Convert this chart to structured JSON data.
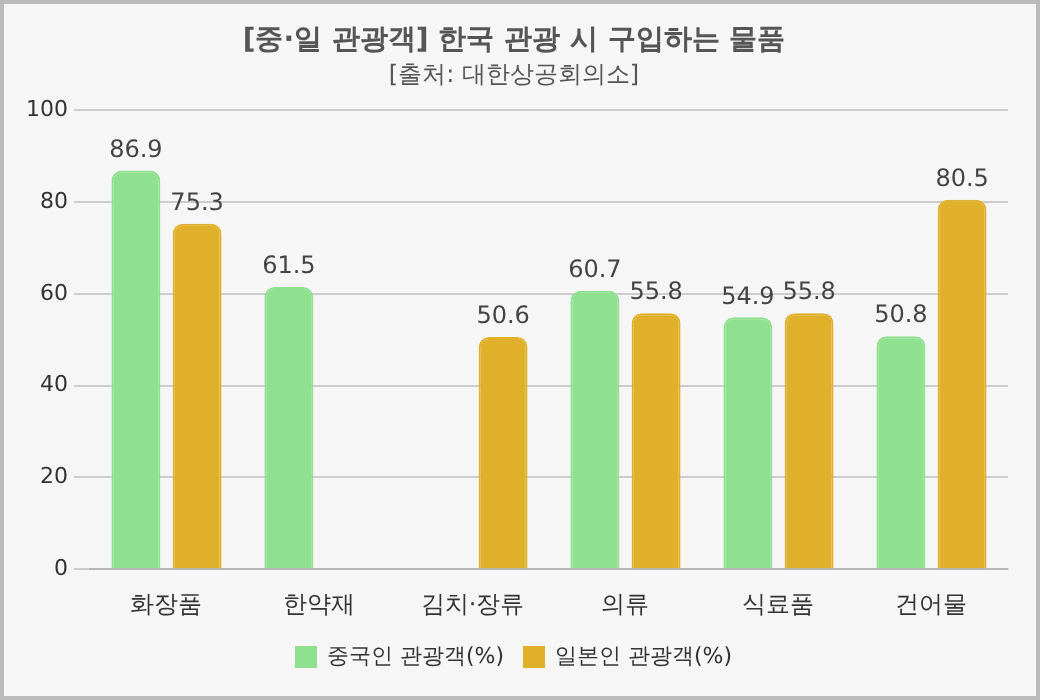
{
  "chart_data": {
    "type": "bar",
    "title": "[중·일 관광객] 한국 관광 시 구입하는 물품",
    "subtitle": "[출처: 대한상공회의소]",
    "categories": [
      "화장품",
      "한약재",
      "김치·장류",
      "의류",
      "식료품",
      "건어물"
    ],
    "series": [
      {
        "name": "중국인 관광객(%)",
        "color": "#8fe08f",
        "values": [
          86.9,
          61.5,
          null,
          60.7,
          54.9,
          50.8
        ]
      },
      {
        "name": "일본인 관광객(%)",
        "color": "#e0b02a",
        "values": [
          75.3,
          null,
          50.6,
          55.8,
          55.8,
          80.5
        ]
      }
    ],
    "ylim": [
      0,
      100
    ],
    "yticks": [
      0,
      20,
      40,
      60,
      80,
      100
    ],
    "grid": "y",
    "legend": "bottom",
    "data_labels": true
  }
}
